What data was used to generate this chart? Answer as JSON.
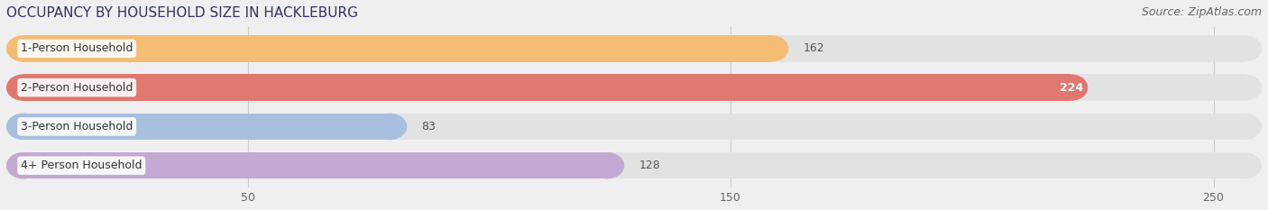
{
  "title": "OCCUPANCY BY HOUSEHOLD SIZE IN HACKLEBURG",
  "source": "Source: ZipAtlas.com",
  "categories": [
    "1-Person Household",
    "2-Person Household",
    "3-Person Household",
    "4+ Person Household"
  ],
  "values": [
    162,
    224,
    83,
    128
  ],
  "bar_colors": [
    "#F5BC74",
    "#E07870",
    "#A8BFE0",
    "#C4A8D4"
  ],
  "label_colors": [
    "#555555",
    "#ffffff",
    "#555555",
    "#555555"
  ],
  "xlim_max": 260,
  "xticks": [
    50,
    150,
    250
  ],
  "background_color": "#efefef",
  "bar_bg_color": "#e2e2e2",
  "title_fontsize": 11,
  "source_fontsize": 9,
  "bar_label_fontsize": 9,
  "category_fontsize": 9
}
